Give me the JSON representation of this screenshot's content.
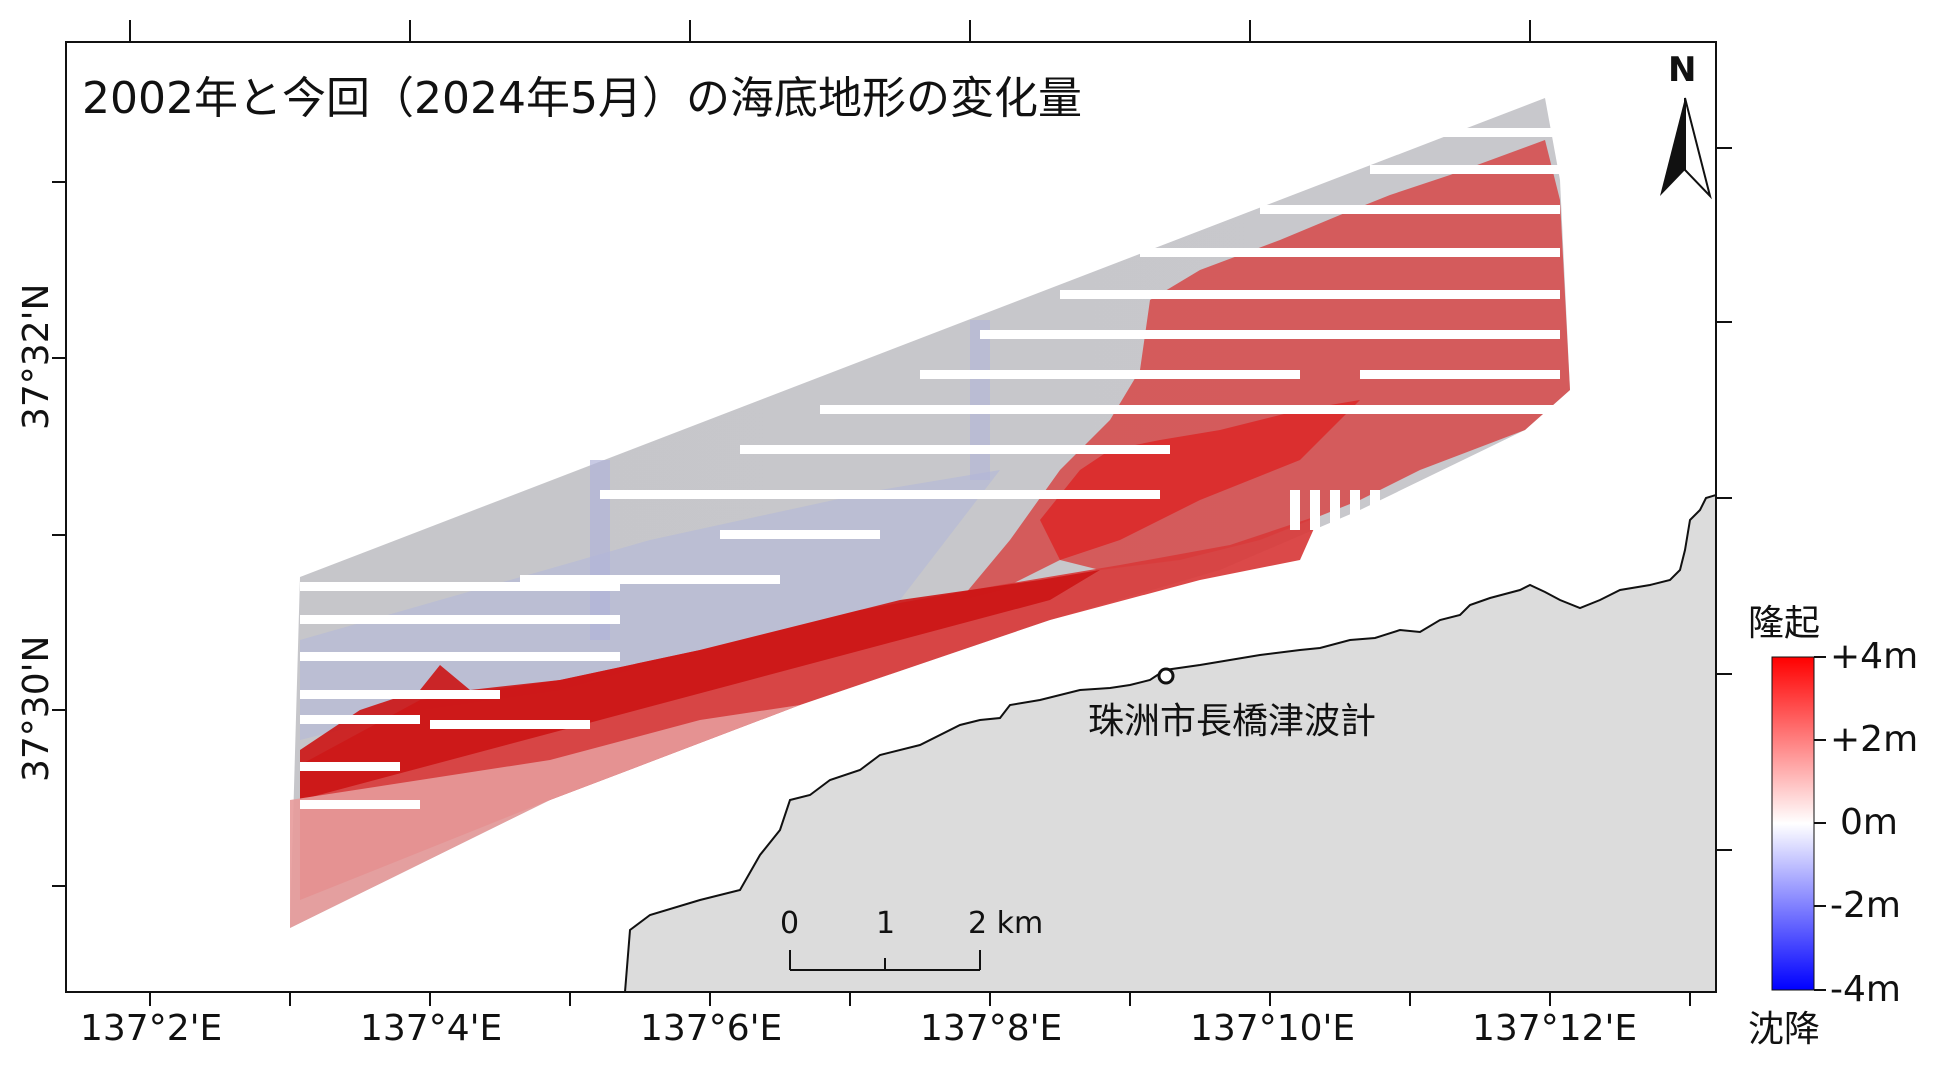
{
  "title": "2002年と今回（2024年5月）の海底地形の変化量",
  "north_label": "N",
  "latitude_ticks": [
    "37°32'N",
    "37°30'N"
  ],
  "longitude_ticks": [
    "137°2'E",
    "137°4'E",
    "137°6'E",
    "137°8'E",
    "137°10'E",
    "137°12'E"
  ],
  "station": {
    "name": "珠洲市長橋津波計"
  },
  "scale_bar": {
    "labels": [
      "0",
      "1",
      "2 km"
    ]
  },
  "legend": {
    "top_label": "隆起",
    "bottom_label": "沈降",
    "ticks": [
      "+4m",
      "+2m",
      "0m",
      "-2m",
      "-4m"
    ],
    "colors": {
      "max": "#ff0000",
      "mid": "#ffffff",
      "min": "#0000ff"
    }
  },
  "colors": {
    "land": "#dcdcdc",
    "no_change": "#c4c4c8",
    "uplift": "#d61e1e",
    "subsidence": "#b4b8d8"
  }
}
